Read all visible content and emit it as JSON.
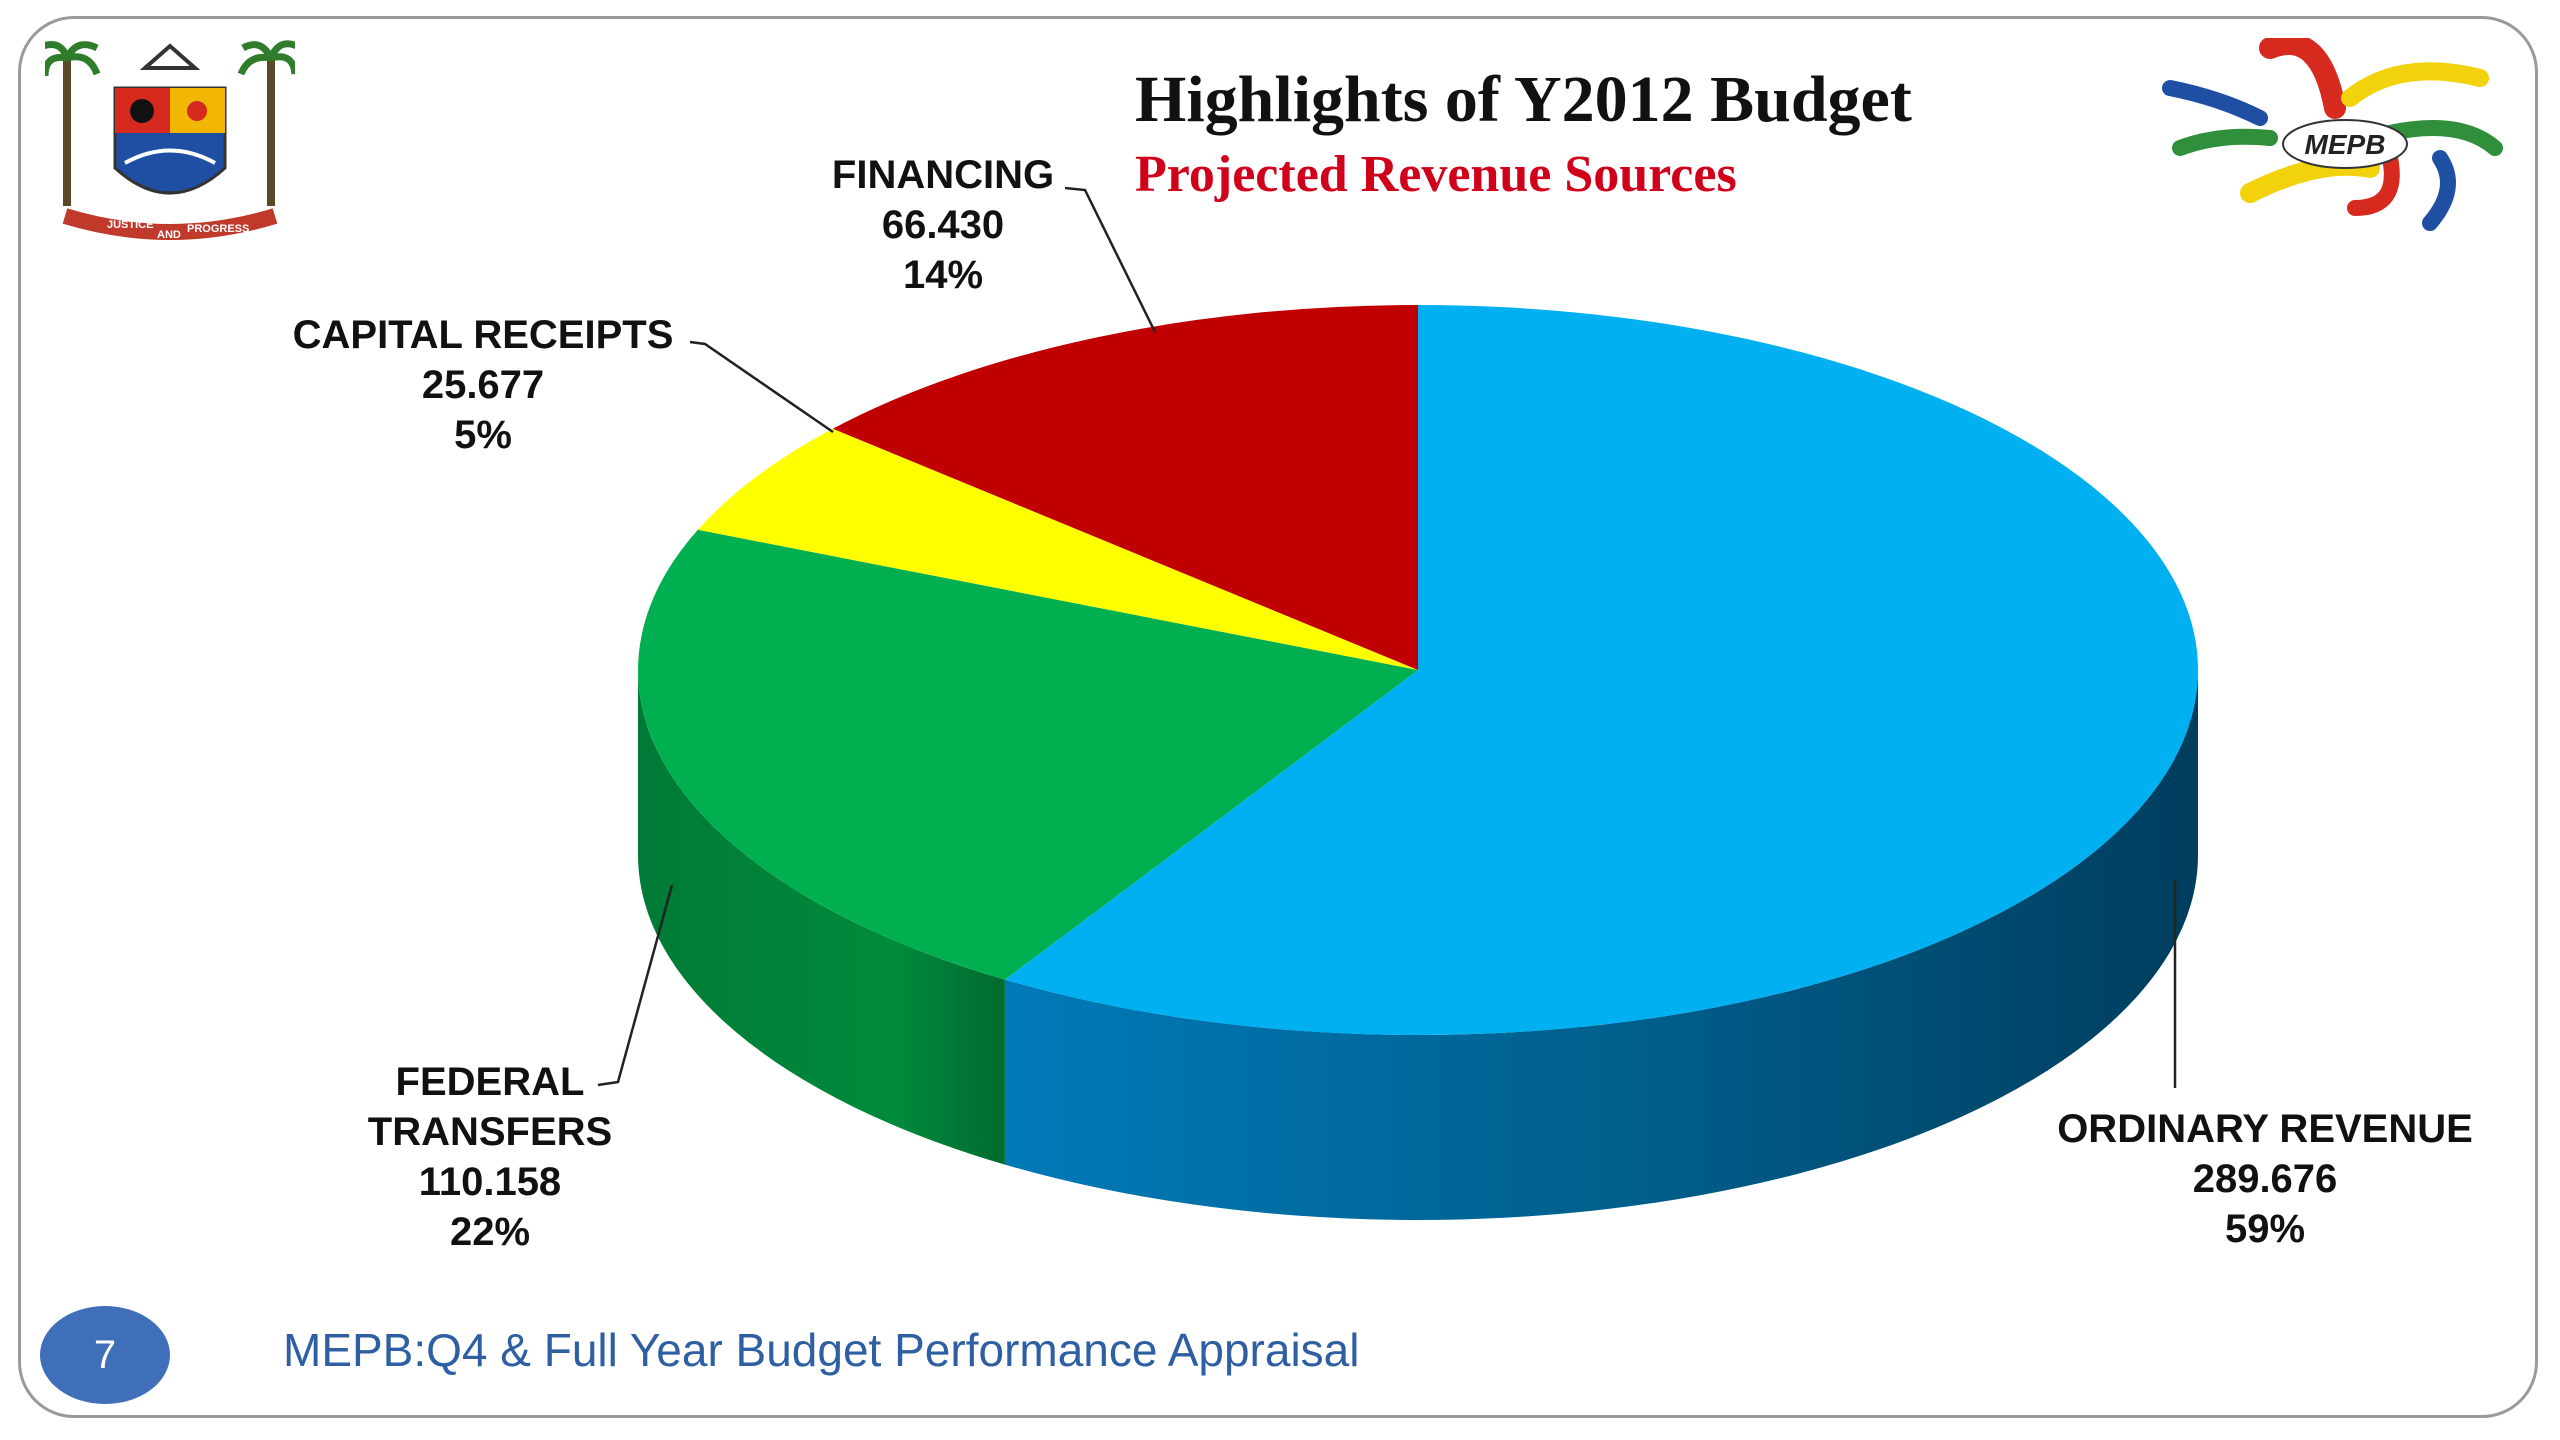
{
  "slide": {
    "page_number": "7",
    "footer": "MEPB:Q4 & Full Year  Budget Performance Appraisal",
    "logo_right_text": "MEPB",
    "crest_motto_left": "JUSTICE",
    "crest_motto_mid": "AND",
    "crest_motto_right": "PROGRESS"
  },
  "chart_data": {
    "type": "pie",
    "title": "Highlights of Y2012 Budget",
    "subtitle": "Projected Revenue Sources",
    "slices": [
      {
        "label": "ORDINARY REVENUE",
        "value": 289.676,
        "value_label": "289.676",
        "percent_label": "59%",
        "color": "#00b0f0"
      },
      {
        "label": "FEDERAL TRANSFERS",
        "label_lines": [
          "FEDERAL",
          "TRANSFERS"
        ],
        "value": 110.158,
        "value_label": "110.158",
        "percent_label": "22%",
        "color": "#00b050"
      },
      {
        "label": "CAPITAL RECEIPTS",
        "value": 25.677,
        "value_label": "25.677",
        "percent_label": "5%",
        "color": "#ffff00"
      },
      {
        "label": "FINANCING",
        "value": 66.43,
        "value_label": "66.430",
        "percent_label": "14%",
        "color": "#c00000"
      }
    ]
  }
}
